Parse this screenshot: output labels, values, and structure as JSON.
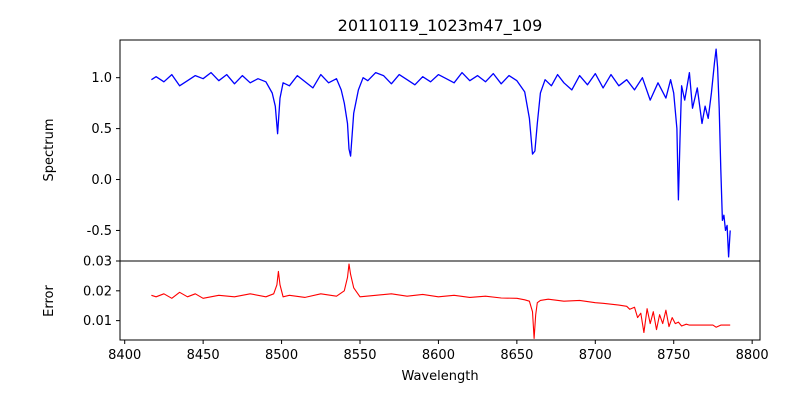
{
  "chart_data": [
    {
      "type": "line",
      "title": "20110119_1023m47_109",
      "xlabel": "",
      "ylabel": "Spectrum",
      "xlim": [
        8397,
        8805
      ],
      "ylim": [
        -0.8,
        1.37
      ],
      "x_ticks": [],
      "y_ticks": [
        -0.5,
        0.0,
        0.5,
        1.0
      ],
      "grid": false,
      "series": [
        {
          "color": "#0000ff",
          "x": [
            8417,
            8420,
            8425,
            8430,
            8435,
            8440,
            8445,
            8450,
            8455,
            8460,
            8465,
            8470,
            8475,
            8480,
            8485,
            8490,
            8494,
            8496,
            8497.5,
            8499,
            8501,
            8505,
            8510,
            8515,
            8520,
            8525,
            8530,
            8535,
            8538,
            8540,
            8542,
            8543,
            8544,
            8546,
            8549,
            8552,
            8555,
            8560,
            8565,
            8570,
            8575,
            8580,
            8585,
            8590,
            8595,
            8600,
            8605,
            8610,
            8615,
            8620,
            8625,
            8630,
            8635,
            8640,
            8645,
            8650,
            8655,
            8658,
            8660,
            8661.5,
            8663,
            8665,
            8668,
            8672,
            8676,
            8680,
            8685,
            8690,
            8695,
            8700,
            8705,
            8710,
            8715,
            8720,
            8725,
            8730,
            8735,
            8740,
            8745,
            8748,
            8750,
            8752,
            8753,
            8754,
            8755,
            8757,
            8760,
            8762,
            8765,
            8768,
            8770,
            8772,
            8774,
            8776,
            8777,
            8778,
            8779,
            8780,
            8781,
            8782,
            8783,
            8784,
            8785,
            8786
          ],
          "values": [
            0.98,
            1.01,
            0.96,
            1.03,
            0.92,
            0.97,
            1.02,
            0.99,
            1.05,
            0.97,
            1.03,
            0.94,
            1.02,
            0.95,
            0.99,
            0.96,
            0.85,
            0.72,
            0.45,
            0.8,
            0.95,
            0.92,
            1.02,
            0.96,
            0.9,
            1.03,
            0.95,
            0.99,
            0.88,
            0.75,
            0.55,
            0.3,
            0.23,
            0.65,
            0.88,
            1.0,
            0.97,
            1.05,
            1.02,
            0.94,
            1.03,
            0.98,
            0.93,
            1.01,
            0.96,
            1.03,
            0.99,
            0.95,
            1.05,
            0.97,
            1.02,
            0.96,
            1.04,
            0.94,
            1.02,
            0.97,
            0.86,
            0.6,
            0.25,
            0.28,
            0.55,
            0.85,
            0.98,
            0.92,
            1.03,
            0.95,
            0.88,
            1.02,
            0.93,
            1.04,
            0.9,
            1.03,
            0.92,
            0.98,
            0.88,
            1.0,
            0.78,
            0.95,
            0.8,
            0.98,
            0.85,
            0.5,
            -0.2,
            0.4,
            0.92,
            0.78,
            1.05,
            0.7,
            0.9,
            0.55,
            0.72,
            0.6,
            0.85,
            1.15,
            1.28,
            1.1,
            0.7,
            0.1,
            -0.4,
            -0.35,
            -0.5,
            -0.45,
            -0.76,
            -0.5
          ]
        }
      ]
    },
    {
      "type": "line",
      "title": "",
      "xlabel": "Wavelength",
      "ylabel": "Error",
      "xlim": [
        8397,
        8805
      ],
      "ylim": [
        0.0035,
        0.03
      ],
      "x_ticks": [
        8400,
        8450,
        8500,
        8550,
        8600,
        8650,
        8700,
        8750,
        8800
      ],
      "y_ticks": [
        0.01,
        0.02,
        0.03
      ],
      "grid": false,
      "series": [
        {
          "color": "#ff0000",
          "x": [
            8417,
            8420,
            8425,
            8430,
            8435,
            8440,
            8445,
            8450,
            8460,
            8470,
            8480,
            8490,
            8495,
            8497,
            8498,
            8499,
            8501,
            8505,
            8515,
            8525,
            8535,
            8540,
            8542,
            8543,
            8544,
            8546,
            8550,
            8560,
            8570,
            8580,
            8590,
            8600,
            8610,
            8620,
            8630,
            8640,
            8650,
            8655,
            8658,
            8660,
            8661,
            8662,
            8663,
            8665,
            8670,
            8680,
            8690,
            8700,
            8705,
            8710,
            8715,
            8720,
            8722,
            8725,
            8727,
            8729,
            8731,
            8733,
            8735,
            8737,
            8739,
            8741,
            8743,
            8745,
            8747,
            8749,
            8751,
            8753,
            8755,
            8758,
            8760,
            8765,
            8770,
            8775,
            8777,
            8780,
            8786
          ],
          "values": [
            0.0185,
            0.018,
            0.019,
            0.0175,
            0.0195,
            0.018,
            0.019,
            0.0175,
            0.0185,
            0.018,
            0.019,
            0.018,
            0.019,
            0.022,
            0.0265,
            0.022,
            0.018,
            0.0185,
            0.0178,
            0.019,
            0.0182,
            0.02,
            0.0245,
            0.029,
            0.0255,
            0.021,
            0.018,
            0.0185,
            0.019,
            0.0182,
            0.0188,
            0.018,
            0.0185,
            0.0178,
            0.0182,
            0.0176,
            0.0175,
            0.017,
            0.0165,
            0.013,
            0.004,
            0.012,
            0.016,
            0.0168,
            0.0172,
            0.0165,
            0.0168,
            0.016,
            0.0158,
            0.0155,
            0.0152,
            0.0148,
            0.0138,
            0.0145,
            0.011,
            0.0125,
            0.006,
            0.014,
            0.009,
            0.013,
            0.007,
            0.012,
            0.009,
            0.0135,
            0.008,
            0.011,
            0.009,
            0.0095,
            0.0082,
            0.0088,
            0.0085,
            0.0085,
            0.0085,
            0.0085,
            0.0078,
            0.0085,
            0.0085
          ]
        }
      ]
    }
  ]
}
